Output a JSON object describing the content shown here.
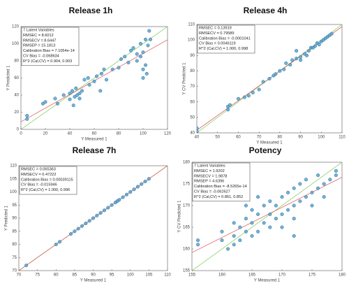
{
  "chart_data": [
    {
      "type": "scatter",
      "title": "Release 1h",
      "xlabel": "Y Measured 1",
      "ylabel": "Y Predicted 1",
      "color": "#5ba3d0",
      "annotation": [
        "7 Latent Variables",
        "RMSEC = 8.6012",
        "RMSECV = 8.6447",
        "RMSEP = 15.1813",
        "Calibration Bias = 7.1054e-14",
        "CV Bias = -0.068634",
        "R^2 (Cal,CV) = 0.904, 0.903"
      ],
      "xlim": [
        0,
        120
      ],
      "ylim": [
        0,
        120
      ],
      "xticks": [
        0,
        20,
        40,
        60,
        80,
        100,
        120
      ],
      "yticks": [
        0,
        20,
        40,
        60,
        80,
        100,
        120
      ],
      "x": [
        5,
        5,
        18,
        20,
        28,
        30,
        35,
        40,
        40,
        42,
        43,
        44,
        45,
        46,
        48,
        48,
        50,
        52,
        55,
        56,
        60,
        62,
        65,
        66,
        68,
        70,
        75,
        80,
        82,
        85,
        88,
        90,
        92,
        95,
        95,
        98,
        98,
        100,
        100,
        100,
        102,
        102,
        105,
        106,
        104,
        103
      ],
      "y": [
        12,
        16,
        30,
        32,
        36,
        30,
        40,
        35,
        42,
        45,
        28,
        38,
        48,
        40,
        42,
        36,
        45,
        58,
        60,
        52,
        56,
        62,
        45,
        65,
        70,
        58,
        70,
        72,
        82,
        85,
        78,
        92,
        95,
        80,
        88,
        85,
        100,
        60,
        70,
        90,
        105,
        75,
        115,
        105,
        98,
        65
      ]
    },
    {
      "type": "scatter",
      "title": "Release 4h",
      "xlabel": "Y Measured 1",
      "ylabel": "Y CV Predicted 1",
      "color": "#5ba3d0",
      "annotation": [
        "RMSEC = 0.13919",
        "RMSECV = 0.79589",
        "Calibration Bias = -0.0001041",
        "CV Bias = 0.0046119",
        "R^2 (Cal,CV) = 1.000, 0.998"
      ],
      "xlim": [
        40,
        110
      ],
      "ylim": [
        40,
        110
      ],
      "xticks": [
        40,
        50,
        60,
        70,
        80,
        90,
        100,
        110
      ],
      "yticks": [
        40,
        50,
        60,
        70,
        80,
        90,
        100,
        110
      ],
      "x": [
        40,
        40,
        55,
        55,
        56,
        60,
        63,
        65,
        67,
        70,
        72,
        75,
        77,
        78,
        80,
        82,
        83,
        85,
        86,
        88,
        88,
        90,
        92,
        94,
        95,
        96,
        97,
        98,
        99,
        100,
        101,
        102,
        103,
        104,
        105,
        90,
        93
      ],
      "y": [
        41,
        43,
        55,
        57,
        58,
        62,
        63,
        64,
        66,
        68,
        73,
        75,
        77,
        78,
        80,
        81,
        85,
        84,
        87,
        88,
        93,
        89,
        91,
        93,
        95,
        95,
        96,
        98,
        97,
        99,
        100,
        101,
        102,
        103,
        104,
        87,
        90
      ]
    },
    {
      "type": "scatter",
      "title": "Release 7h",
      "xlabel": "Y Measured 1",
      "ylabel": "Y Predicted 1",
      "color": "#5ba3d0",
      "annotation": [
        "RMSEC = 0.065363",
        "RMSECV = 0.47222",
        "Calibration Bias = 0.00039115",
        "CV Bias = -0.015946",
        "R^2 (Cal,CV) = 1.000, 0.996"
      ],
      "xlim": [
        70,
        110
      ],
      "ylim": [
        70,
        110
      ],
      "xticks": [
        70,
        75,
        80,
        85,
        90,
        95,
        100,
        105,
        110
      ],
      "yticks": [
        70,
        75,
        80,
        85,
        90,
        95,
        100,
        105,
        110
      ],
      "x": [
        72,
        80,
        81,
        84,
        85,
        86,
        87,
        88,
        89,
        90,
        91,
        92,
        93,
        94,
        95,
        96,
        96.5,
        97,
        98,
        99,
        100,
        101,
        102,
        103,
        104,
        105
      ],
      "y": [
        72,
        80,
        81,
        84,
        85,
        86,
        87,
        88,
        89,
        90,
        91,
        92,
        93,
        94,
        95,
        96,
        96.5,
        97,
        98,
        99,
        100,
        101,
        102,
        103,
        104,
        105
      ]
    },
    {
      "type": "scatter",
      "title": "Potency",
      "xlabel": "Y Measured 1",
      "ylabel": "Y CV Predicted 1",
      "color": "#5ba3d0",
      "annotation": [
        "7 Latent Variables",
        "RMSEC = 1.9202",
        "RMSECV = 1.9878",
        "RMSEP = 4.6396",
        "Calibration Bias = -8.5265e-14",
        "CV Bias = -0.062627",
        "R^2 (Cal,CV) = 0.861, 0.852"
      ],
      "xlim": [
        155,
        180
      ],
      "ylim": [
        155,
        180
      ],
      "xticks": [
        155,
        160,
        165,
        170,
        175,
        180
      ],
      "yticks": [
        155,
        160,
        165,
        170,
        175,
        180
      ],
      "x": [
        156,
        156,
        160,
        160,
        161,
        162,
        162,
        162,
        163,
        163,
        164,
        164,
        165,
        165,
        165,
        166,
        166,
        167,
        167,
        168,
        168,
        168,
        169,
        169,
        170,
        170,
        170,
        171,
        171,
        172,
        172,
        172,
        173,
        173,
        174,
        174,
        175,
        175,
        176,
        176,
        177,
        177,
        178,
        179,
        179,
        172,
        166,
        164
      ],
      "y": [
        161,
        162,
        162,
        164,
        160,
        163,
        166,
        161,
        165,
        162,
        164,
        167,
        163,
        166,
        169,
        164,
        168,
        166,
        170,
        165,
        168,
        171,
        167,
        170,
        168,
        172,
        165,
        169,
        173,
        170,
        174,
        167,
        171,
        175,
        172,
        176,
        170,
        173,
        174,
        177,
        172,
        175,
        176,
        178,
        177,
        163,
        172,
        170
      ]
    }
  ]
}
